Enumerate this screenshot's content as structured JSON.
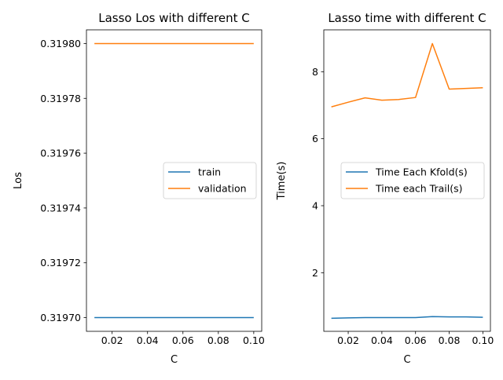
{
  "chart_data": [
    {
      "type": "line",
      "title": "Lasso Los with different C",
      "xlabel": "C",
      "ylabel": "Los",
      "xlim": [
        0.0055,
        0.1045
      ],
      "ylim": [
        0.319695,
        0.319805
      ],
      "xticks": [
        0.02,
        0.04,
        0.06,
        0.08,
        0.1
      ],
      "xtick_labels": [
        "0.02",
        "0.04",
        "0.06",
        "0.08",
        "0.10"
      ],
      "yticks": [
        0.3197,
        0.31972,
        0.31974,
        0.31976,
        0.31978,
        0.3198
      ],
      "ytick_labels": [
        "0.31970",
        "0.31972",
        "0.31974",
        "0.31976",
        "0.31978",
        "0.31980"
      ],
      "grid": false,
      "legend": "center-right",
      "x": [
        0.01,
        0.02,
        0.03,
        0.04,
        0.05,
        0.06,
        0.07,
        0.08,
        0.09,
        0.1
      ],
      "series": [
        {
          "name": "train",
          "color": "#1f77b4",
          "values": [
            0.3197,
            0.3197,
            0.3197,
            0.3197,
            0.3197,
            0.3197,
            0.3197,
            0.3197,
            0.3197,
            0.3197
          ]
        },
        {
          "name": "validation",
          "color": "#ff7f0e",
          "values": [
            0.3198,
            0.3198,
            0.3198,
            0.3198,
            0.3198,
            0.3198,
            0.3198,
            0.3198,
            0.3198,
            0.3198
          ]
        }
      ]
    },
    {
      "type": "line",
      "title": "Lasso time with different C",
      "xlabel": "C",
      "ylabel": "Time(s)",
      "xlim": [
        0.0055,
        0.1045
      ],
      "ylim": [
        0.25,
        9.25
      ],
      "xticks": [
        0.02,
        0.04,
        0.06,
        0.08,
        0.1
      ],
      "xtick_labels": [
        "0.02",
        "0.04",
        "0.06",
        "0.08",
        "0.10"
      ],
      "yticks": [
        2,
        4,
        6,
        8
      ],
      "ytick_labels": [
        "2",
        "4",
        "6",
        "8"
      ],
      "grid": false,
      "legend": "center-right",
      "x": [
        0.01,
        0.02,
        0.03,
        0.04,
        0.05,
        0.06,
        0.07,
        0.08,
        0.09,
        0.1
      ],
      "series": [
        {
          "name": "Time Each Kfold(s)",
          "color": "#1f77b4",
          "values": [
            0.64,
            0.65,
            0.66,
            0.66,
            0.66,
            0.66,
            0.69,
            0.68,
            0.68,
            0.67
          ]
        },
        {
          "name": "Time each Trail(s)",
          "color": "#ff7f0e",
          "values": [
            6.95,
            7.09,
            7.22,
            7.15,
            7.17,
            7.23,
            8.84,
            7.48,
            7.5,
            7.52
          ]
        }
      ]
    }
  ]
}
